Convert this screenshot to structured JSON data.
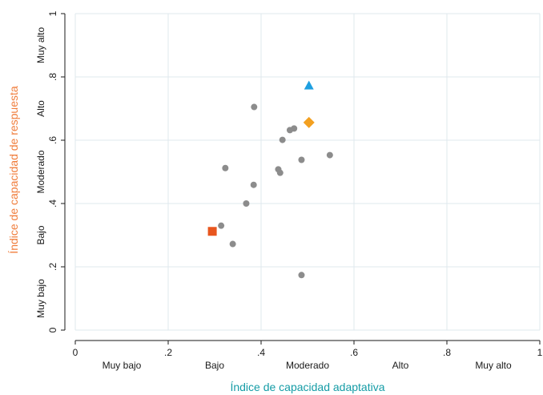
{
  "chart_data": {
    "type": "scatter",
    "xlabel": "Índice de capacidad adaptativa",
    "ylabel": "Índice de capacidad de respuesta",
    "xlim": [
      0,
      1
    ],
    "ylim": [
      0,
      1
    ],
    "grid": true,
    "x_ticks": [
      {
        "value": 0,
        "label": "0"
      },
      {
        "value": 0.2,
        "label": ".2"
      },
      {
        "value": 0.4,
        "label": ".4"
      },
      {
        "value": 0.6,
        "label": ".6"
      },
      {
        "value": 0.8,
        "label": ".8"
      },
      {
        "value": 1,
        "label": "1"
      }
    ],
    "y_ticks": [
      {
        "value": 0,
        "label": "0"
      },
      {
        "value": 0.2,
        "label": ".2"
      },
      {
        "value": 0.4,
        "label": ".4"
      },
      {
        "value": 0.6,
        "label": ".6"
      },
      {
        "value": 0.8,
        "label": ".8"
      },
      {
        "value": 1,
        "label": "1"
      }
    ],
    "x_categories": [
      {
        "value": 0.1,
        "label": "Muy bajo"
      },
      {
        "value": 0.3,
        "label": "Bajo"
      },
      {
        "value": 0.5,
        "label": "Moderado"
      },
      {
        "value": 0.7,
        "label": "Alto"
      },
      {
        "value": 0.9,
        "label": "Muy alto"
      }
    ],
    "y_categories": [
      {
        "value": 0.1,
        "label": "Muy bajo"
      },
      {
        "value": 0.3,
        "label": "Bajo"
      },
      {
        "value": 0.5,
        "label": "Moderado"
      },
      {
        "value": 0.7,
        "label": "Alto"
      },
      {
        "value": 0.9,
        "label": "Muy alto"
      }
    ],
    "series": [
      {
        "marker": "circle",
        "color": "#8c8c8c",
        "points": [
          {
            "x": 0.385,
            "y": 0.705
          },
          {
            "x": 0.462,
            "y": 0.632
          },
          {
            "x": 0.471,
            "y": 0.637
          },
          {
            "x": 0.446,
            "y": 0.601
          },
          {
            "x": 0.548,
            "y": 0.553
          },
          {
            "x": 0.487,
            "y": 0.538
          },
          {
            "x": 0.323,
            "y": 0.512
          },
          {
            "x": 0.437,
            "y": 0.508
          },
          {
            "x": 0.441,
            "y": 0.497
          },
          {
            "x": 0.384,
            "y": 0.459
          },
          {
            "x": 0.368,
            "y": 0.4
          },
          {
            "x": 0.314,
            "y": 0.33
          },
          {
            "x": 0.339,
            "y": 0.272
          },
          {
            "x": 0.487,
            "y": 0.174
          }
        ]
      },
      {
        "marker": "triangle",
        "color": "#1e9fe0",
        "points": [
          {
            "x": 0.503,
            "y": 0.773
          }
        ]
      },
      {
        "marker": "diamond",
        "color": "#f3a020",
        "points": [
          {
            "x": 0.503,
            "y": 0.656
          }
        ]
      },
      {
        "marker": "square",
        "color": "#e8561e",
        "points": [
          {
            "x": 0.295,
            "y": 0.312
          }
        ]
      }
    ],
    "colors": {
      "xlabel": "#159ca6",
      "ylabel": "#f07d3c",
      "grid": "#dfe9ee",
      "axis": "#1a1a1a"
    }
  }
}
